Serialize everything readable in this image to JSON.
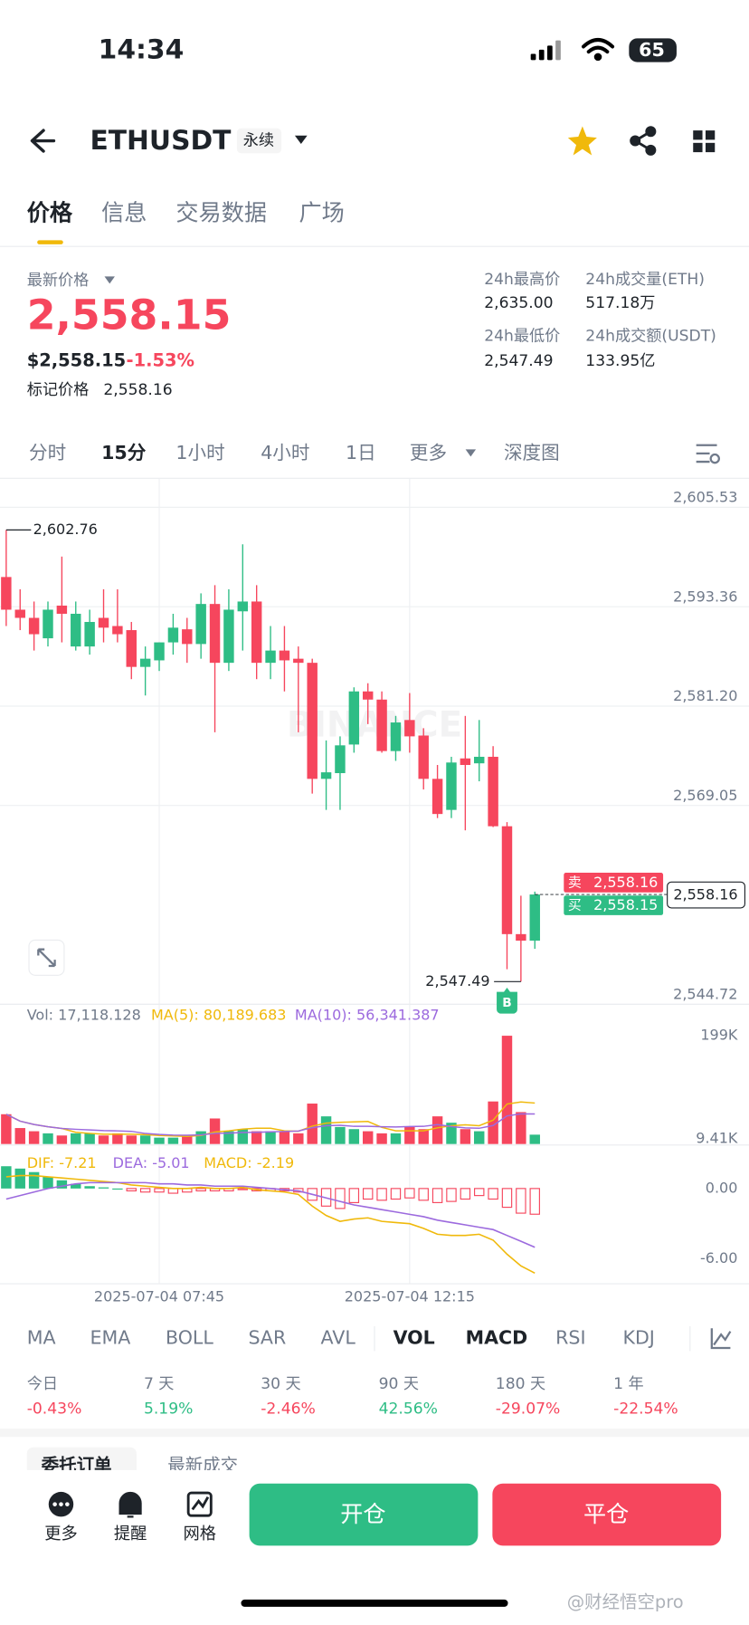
{
  "status": {
    "time": "14:34",
    "battery": "65"
  },
  "header": {
    "symbol": "ETHUSDT",
    "tag": "永续"
  },
  "tabs": [
    "价格",
    "信息",
    "交易数据",
    "广场"
  ],
  "price": {
    "label": "最新价格",
    "last": "2,558.15",
    "usd": "$2,558.15",
    "change": "-1.53%",
    "mark_label": "标记价格",
    "mark": "2,558.16"
  },
  "stats": [
    {
      "label": "24h最高价",
      "value": "2,635.00"
    },
    {
      "label": "24h成交量(ETH)",
      "value": "517.18万"
    },
    {
      "label": "24h最低价",
      "value": "2,547.49"
    },
    {
      "label": "24h成交额(USDT)",
      "value": "133.95亿"
    }
  ],
  "intervals": [
    "分时",
    "15分",
    "1小时",
    "4小时",
    "1日",
    "更多",
    "深度图"
  ],
  "chart_data": {
    "type": "candlestick",
    "watermark": "BINANCE",
    "categories": [
      null,
      null,
      null,
      null,
      null,
      null,
      null,
      null,
      null,
      null,
      null,
      "2025-07-04 07:45",
      null,
      null,
      null,
      null,
      null,
      null,
      null,
      null,
      null,
      null,
      null,
      null,
      null,
      null,
      null,
      null,
      null,
      "2025-07-04 12:15",
      null,
      null,
      null,
      null,
      null,
      null,
      null,
      null,
      null
    ],
    "open": [
      2597.0,
      2593.0,
      2592.0,
      2589.5,
      2593.5,
      2588.5,
      2588.5,
      2592.0,
      2591.0,
      2590.5,
      2586.0,
      2586.8,
      2589.0,
      2590.6,
      2588.8,
      2593.7,
      2586.5,
      2592.8,
      2594.0,
      2586.5,
      2588.0,
      2587.0,
      2586.5,
      2572.3,
      2573.0,
      2576.5,
      2583.0,
      2582.0,
      2575.7,
      2579.5,
      2577.6,
      2572.3,
      2568.5,
      2574.8,
      2574.2,
      2575.0,
      2566.5,
      2553.3,
      2552.5
    ],
    "high": [
      2602.76,
      2595.5,
      2594.0,
      2594.0,
      2599.5,
      2594.0,
      2593.0,
      2595.5,
      2595.5,
      2591.5,
      2588.5,
      2589.0,
      2592.5,
      2592.0,
      2595.0,
      2596.0,
      2595.5,
      2601.0,
      2596.0,
      2591.0,
      2591.0,
      2588.5,
      2587.0,
      2577.0,
      2577.5,
      2583.5,
      2584.0,
      2583.0,
      2580.0,
      2582.8,
      2578.5,
      2574.0,
      2575.0,
      2580.0,
      2579.5,
      2576.3,
      2567.0,
      2558.0,
      2558.5
    ],
    "low": [
      2591.0,
      2590.5,
      2588.0,
      2588.5,
      2589.0,
      2588.0,
      2587.5,
      2589.0,
      2589.0,
      2584.5,
      2582.5,
      2585.5,
      2587.5,
      2586.5,
      2587.0,
      2578.0,
      2585.5,
      2588.0,
      2584.5,
      2584.5,
      2583.0,
      2578.0,
      2570.5,
      2568.5,
      2568.5,
      2575.5,
      2579.0,
      2575.5,
      2574.5,
      2575.5,
      2571.0,
      2567.5,
      2567.5,
      2566.0,
      2572.0,
      2566.4,
      2549.0,
      2547.49,
      2551.5
    ],
    "close": [
      2593.0,
      2592.0,
      2590.0,
      2593.0,
      2592.5,
      2592.5,
      2591.5,
      2590.8,
      2590.0,
      2586.0,
      2587.0,
      2589.0,
      2590.8,
      2588.8,
      2593.7,
      2586.5,
      2593.0,
      2594.0,
      2586.5,
      2588.0,
      2586.8,
      2586.5,
      2572.3,
      2573.1,
      2576.4,
      2583.0,
      2582.0,
      2575.7,
      2579.2,
      2577.5,
      2572.3,
      2568.0,
      2574.3,
      2574.0,
      2575.0,
      2566.5,
      2553.3,
      2552.5,
      2558.15
    ],
    "up_color": "#2ebd85",
    "down_color": "#f6465d",
    "ylim": [
      2544.72,
      2605.53
    ],
    "yticks": [
      {
        "value": 2605.53,
        "label": "2,605.53"
      },
      {
        "value": 2593.36,
        "label": "2,593.36"
      },
      {
        "value": 2581.2,
        "label": "2,581.20"
      },
      {
        "value": 2569.05,
        "label": "2,569.05"
      },
      {
        "value": 2544.72,
        "label": "2,544.72"
      }
    ],
    "high_label": "2,602.76",
    "low_label": "2,547.49",
    "ask": {
      "label": "卖",
      "price": "2,558.16"
    },
    "bid": {
      "label": "买",
      "price": "2,558.15"
    },
    "last_tag": "2,558.16",
    "trade_marker": "B",
    "volume": {
      "text": "Vol: 17,118.128",
      "ma5_text": "MA(5): 80,189.683",
      "ma10_text": "MA(10): 56,341.387",
      "ma5_color": "#f0b90b",
      "ma10_color": "#9c6ade",
      "values": [
        54600,
        29250,
        23400,
        19500,
        15600,
        19500,
        19500,
        15600,
        19500,
        15600,
        15600,
        11700,
        11700,
        15600,
        23400,
        46800,
        23400,
        27300,
        23400,
        23400,
        23400,
        19500,
        74100,
        50700,
        31200,
        27300,
        23400,
        19500,
        19500,
        31200,
        27300,
        50700,
        39000,
        27300,
        23400,
        78000,
        198500,
        58500,
        17118.128
      ],
      "ylim": [
        0,
        205000
      ],
      "yticks": [
        {
          "value": 199000,
          "label": "199K"
        },
        {
          "value": 9410,
          "label": "9.41K"
        }
      ]
    },
    "macd": {
      "dif_text": "DIF: -7.21",
      "dea_text": "DEA: -5.01",
      "macd_text": "MACD: -2.19",
      "dif_color": "#f0b90b",
      "dea_color": "#9c6ade",
      "dif": [
        1.0,
        1.1,
        1.1,
        1.0,
        0.9,
        0.8,
        0.7,
        0.6,
        0.5,
        0.3,
        0.2,
        0.1,
        0.0,
        0.0,
        0.1,
        0.0,
        0.0,
        0.1,
        -0.1,
        -0.2,
        -0.3,
        -0.5,
        -1.5,
        -2.3,
        -2.8,
        -2.6,
        -2.5,
        -2.8,
        -2.9,
        -3.0,
        -3.4,
        -3.9,
        -4.0,
        -4.0,
        -3.9,
        -4.4,
        -5.6,
        -6.6,
        -7.21
      ],
      "dea": [
        -0.9,
        -0.6,
        -0.3,
        0.0,
        0.2,
        0.4,
        0.5,
        0.5,
        0.5,
        0.5,
        0.5,
        0.4,
        0.4,
        0.3,
        0.3,
        0.2,
        0.2,
        0.2,
        0.1,
        0.0,
        -0.1,
        -0.2,
        -0.5,
        -0.8,
        -1.1,
        -1.4,
        -1.6,
        -1.8,
        -2.0,
        -2.2,
        -2.4,
        -2.7,
        -2.9,
        -3.1,
        -3.3,
        -3.5,
        -4.0,
        -4.5,
        -5.01
      ],
      "hist": [
        1.9,
        1.7,
        1.4,
        1.0,
        0.7,
        0.4,
        0.2,
        0.1,
        0.0,
        -0.2,
        -0.3,
        -0.3,
        -0.4,
        -0.3,
        -0.2,
        -0.2,
        -0.2,
        -0.1,
        -0.2,
        -0.2,
        -0.2,
        -0.3,
        -1.0,
        -1.5,
        -1.7,
        -1.2,
        -0.9,
        -1.0,
        -0.9,
        -0.8,
        -1.0,
        -1.2,
        -1.1,
        -0.9,
        -0.6,
        -0.9,
        -1.6,
        -2.1,
        -2.19
      ],
      "ylim": [
        -8.12,
        3.53
      ],
      "yticks": [
        {
          "value": 0,
          "label": "0.00"
        },
        {
          "value": -6,
          "label": "-6.00"
        }
      ]
    }
  },
  "indicators": [
    "MA",
    "EMA",
    "BOLL",
    "SAR",
    "AVL",
    "VOL",
    "MACD",
    "RSI",
    "KDJ"
  ],
  "periods": [
    {
      "label": "今日",
      "value": "-0.43%"
    },
    {
      "label": "7 天",
      "value": "5.19%"
    },
    {
      "label": "30 天",
      "value": "-2.46%"
    },
    {
      "label": "90 天",
      "value": "42.56%"
    },
    {
      "label": "180 天",
      "value": "-29.07%"
    },
    {
      "label": "1 年",
      "value": "-22.54%"
    }
  ],
  "order_tabs": [
    "委托订单",
    "最新成交"
  ],
  "toolbar": [
    "更多",
    "提醒",
    "网格"
  ],
  "buttons": {
    "open": "开仓",
    "close": "平仓"
  },
  "watermark": "@财经悟空pro"
}
